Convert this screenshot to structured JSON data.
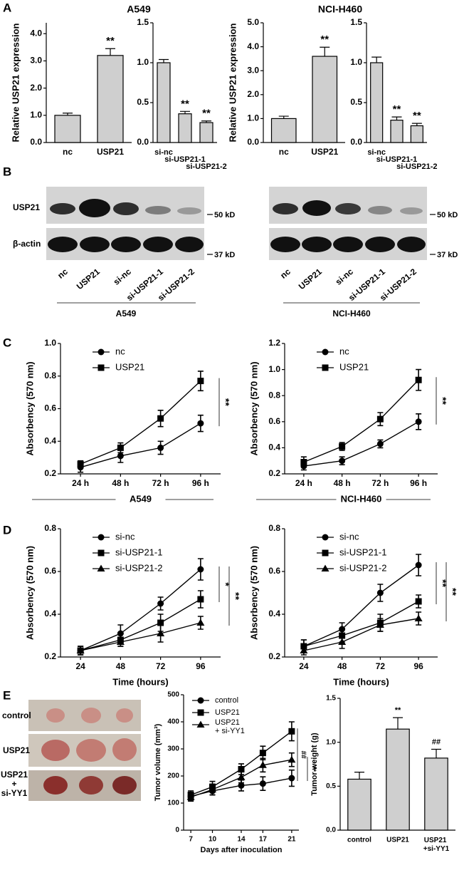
{
  "panel_labels": [
    "A",
    "B",
    "C",
    "D",
    "E"
  ],
  "blot": {
    "rows": [
      "USP21",
      "β-actin"
    ],
    "markers": [
      "50 kD",
      "37 kD"
    ],
    "lanes": [
      "nc",
      "USP21",
      "si-nc",
      "si-USP21-1",
      "si-USP21-2"
    ],
    "groups": [
      "A549",
      "NCI-H460"
    ]
  },
  "photos": {
    "rows": [
      "control",
      "USP21"
    ],
    "combined_row": [
      "USP21",
      "+",
      "si-YY1"
    ]
  },
  "chart_data": [
    {
      "type": "bar",
      "title": "A549",
      "ylabel": "Relative USP21 expression",
      "color": "#cfcfcf",
      "categories": [
        "nc",
        "USP21"
      ],
      "values": [
        1.0,
        3.2
      ],
      "errors": [
        0.08,
        0.25
      ],
      "annotations": [
        null,
        "**"
      ],
      "ylim": [
        0,
        4.4
      ],
      "yticks": [
        {
          "value": 0,
          "label": "0.0"
        },
        {
          "value": 1,
          "label": "1.0"
        },
        {
          "value": 2,
          "label": "2.0"
        },
        {
          "value": 3,
          "label": "3.0"
        },
        {
          "value": 4,
          "label": "4.0"
        }
      ]
    },
    {
      "type": "bar",
      "color": "#cfcfcf",
      "categories": [
        "si-nc",
        "si-USP21-1",
        "si-USP21-2"
      ],
      "values": [
        1.0,
        0.36,
        0.25
      ],
      "errors": [
        0.04,
        0.03,
        0.02
      ],
      "annotations": [
        null,
        "**",
        "**"
      ],
      "ylim": [
        0,
        1.5
      ],
      "yticks": [
        {
          "value": 0,
          "label": "0.0"
        },
        0.5,
        {
          "value": 1,
          "label": "1.0"
        },
        1.5
      ]
    },
    {
      "type": "bar",
      "title": "NCI-H460",
      "ylabel": "Relative USP21 expression",
      "color": "#cfcfcf",
      "categories": [
        "nc",
        "USP21"
      ],
      "values": [
        1.0,
        3.6
      ],
      "errors": [
        0.1,
        0.38
      ],
      "annotations": [
        null,
        "**"
      ],
      "ylim": [
        0,
        5
      ],
      "yticks": [
        {
          "value": 0,
          "label": "0.0"
        },
        {
          "value": 1,
          "label": "1.0"
        },
        {
          "value": 2,
          "label": "2.0"
        },
        {
          "value": 3,
          "label": "3.0"
        },
        {
          "value": 4,
          "label": "4.0"
        },
        {
          "value": 5,
          "label": "5.0"
        }
      ]
    },
    {
      "type": "bar",
      "color": "#cfcfcf",
      "categories": [
        "si-nc",
        "si-USP21-1",
        "si-USP21-2"
      ],
      "values": [
        1.0,
        0.28,
        0.21
      ],
      "errors": [
        0.07,
        0.04,
        0.03
      ],
      "annotations": [
        null,
        "**",
        "**"
      ],
      "ylim": [
        0,
        1.5
      ],
      "yticks": [
        {
          "value": 0,
          "label": "0.0"
        },
        0.5,
        {
          "value": 1,
          "label": "1.0"
        },
        1.5
      ]
    },
    {
      "type": "line",
      "ylabel": "Absorbency (570 nm)",
      "xlabel": "A549",
      "legend": "upper left",
      "categories": [
        "24 h",
        "48 h",
        "72 h",
        "96 h"
      ],
      "series": [
        {
          "name": "nc",
          "color": "#000000",
          "marker": "circle",
          "values": [
            0.24,
            0.31,
            0.36,
            0.51
          ],
          "errors": [
            0.03,
            0.04,
            0.04,
            0.05
          ]
        },
        {
          "name": "USP21",
          "color": "#000000",
          "marker": "square",
          "values": [
            0.26,
            0.36,
            0.54,
            0.77
          ],
          "errors": [
            0.02,
            0.03,
            0.05,
            0.06
          ]
        }
      ],
      "annotations": [
        "**"
      ],
      "ylim": [
        0.2,
        1.0
      ],
      "yticks": [
        0.2,
        0.4,
        0.6,
        0.8,
        {
          "value": 1.0,
          "label": "1.0"
        }
      ]
    },
    {
      "type": "line",
      "ylabel": "Absorbency (570 nm)",
      "xlabel": "NCI-H460",
      "legend": "upper left",
      "categories": [
        "24 h",
        "48 h",
        "72 h",
        "96 h"
      ],
      "series": [
        {
          "name": "nc",
          "color": "#000000",
          "marker": "circle",
          "values": [
            0.26,
            0.3,
            0.43,
            0.6
          ],
          "errors": [
            0.03,
            0.03,
            0.03,
            0.06
          ]
        },
        {
          "name": "USP21",
          "color": "#000000",
          "marker": "square",
          "values": [
            0.29,
            0.41,
            0.62,
            0.92
          ],
          "errors": [
            0.04,
            0.03,
            0.05,
            0.08
          ]
        }
      ],
      "annotations": [
        "**"
      ],
      "ylim": [
        0.2,
        1.2
      ],
      "yticks": [
        0.2,
        0.4,
        0.6,
        0.8,
        {
          "value": 1.0,
          "label": "1.0"
        },
        1.2
      ]
    },
    {
      "type": "line",
      "ylabel": "Absorbency (570 nm)",
      "xlabel": "Time (hours)",
      "legend": "upper left",
      "categories": [
        "24",
        "48",
        "72",
        "96"
      ],
      "series": [
        {
          "name": "si-nc",
          "color": "#000000",
          "marker": "circle",
          "values": [
            0.23,
            0.31,
            0.45,
            0.61
          ],
          "errors": [
            0.02,
            0.04,
            0.03,
            0.05
          ]
        },
        {
          "name": "si-USP21-1",
          "color": "#000000",
          "marker": "square",
          "values": [
            0.23,
            0.28,
            0.36,
            0.47
          ],
          "errors": [
            0.02,
            0.03,
            0.04,
            0.04
          ]
        },
        {
          "name": "si-USP21-2",
          "color": "#000000",
          "marker": "triangle",
          "values": [
            0.23,
            0.27,
            0.31,
            0.36
          ],
          "errors": [
            0.02,
            0.02,
            0.04,
            0.03
          ]
        }
      ],
      "annotations": [
        "*",
        "**"
      ],
      "ylim": [
        0.2,
        0.8
      ],
      "yticks": [
        0.2,
        0.4,
        0.6,
        0.8
      ]
    },
    {
      "type": "line",
      "ylabel": "Absorbency (570 nm)",
      "xlabel": "Time (hours)",
      "legend": "upper left",
      "categories": [
        "24",
        "48",
        "72",
        "96"
      ],
      "series": [
        {
          "name": "si-nc",
          "color": "#000000",
          "marker": "circle",
          "values": [
            0.25,
            0.33,
            0.5,
            0.63
          ],
          "errors": [
            0.03,
            0.03,
            0.04,
            0.05
          ]
        },
        {
          "name": "si-USP21-1",
          "color": "#000000",
          "marker": "square",
          "values": [
            0.25,
            0.3,
            0.36,
            0.46
          ],
          "errors": [
            0.03,
            0.03,
            0.04,
            0.03
          ]
        },
        {
          "name": "si-USP21-2",
          "color": "#000000",
          "marker": "triangle",
          "values": [
            0.23,
            0.27,
            0.35,
            0.38
          ],
          "errors": [
            0.02,
            0.03,
            0.03,
            0.03
          ]
        }
      ],
      "annotations": [
        "**",
        "**"
      ],
      "ylim": [
        0.2,
        0.8
      ],
      "yticks": [
        0.2,
        0.4,
        0.6,
        0.8
      ]
    },
    {
      "type": "line",
      "ylabel": "Tumor volume (mm³)",
      "xlabel": "Days after inoculation",
      "legend": "upper left",
      "x": [
        7,
        10,
        14,
        17,
        21
      ],
      "xlim": [
        6,
        22
      ],
      "xticks": [
        7,
        10,
        14,
        17,
        21
      ],
      "series": [
        {
          "name": "control",
          "color": "#000000",
          "marker": "circle",
          "values": [
            125,
            145,
            165,
            172,
            192
          ],
          "errors": [
            15,
            15,
            20,
            25,
            30
          ]
        },
        {
          "name": "USP21",
          "color": "#000000",
          "marker": "square",
          "values": [
            130,
            160,
            225,
            285,
            365
          ],
          "errors": [
            15,
            20,
            20,
            25,
            35
          ]
        },
        {
          "name": "USP21 + si-YY1",
          "color": "#000000",
          "marker": "triangle",
          "values": [
            122,
            150,
            195,
            240,
            260
          ],
          "errors": [
            15,
            20,
            20,
            25,
            25
          ]
        }
      ],
      "annotations": [
        "##",
        "**"
      ],
      "ylim": [
        0,
        500
      ],
      "yticks": [
        0,
        100,
        200,
        300,
        400,
        500
      ]
    },
    {
      "type": "bar",
      "ylabel": "Tumor weight (g)",
      "color": "#cfcfcf",
      "categories": [
        "control",
        "USP21",
        "USP21 +si-YY1"
      ],
      "values": [
        0.58,
        1.15,
        0.82
      ],
      "errors": [
        0.08,
        0.13,
        0.1
      ],
      "annotations": [
        null,
        "**",
        "##"
      ],
      "ylim": [
        0,
        1.5
      ],
      "yticks": [
        {
          "value": 0,
          "label": "0.0"
        },
        0.5,
        {
          "value": 1,
          "label": "1.0"
        },
        1.5
      ]
    }
  ]
}
